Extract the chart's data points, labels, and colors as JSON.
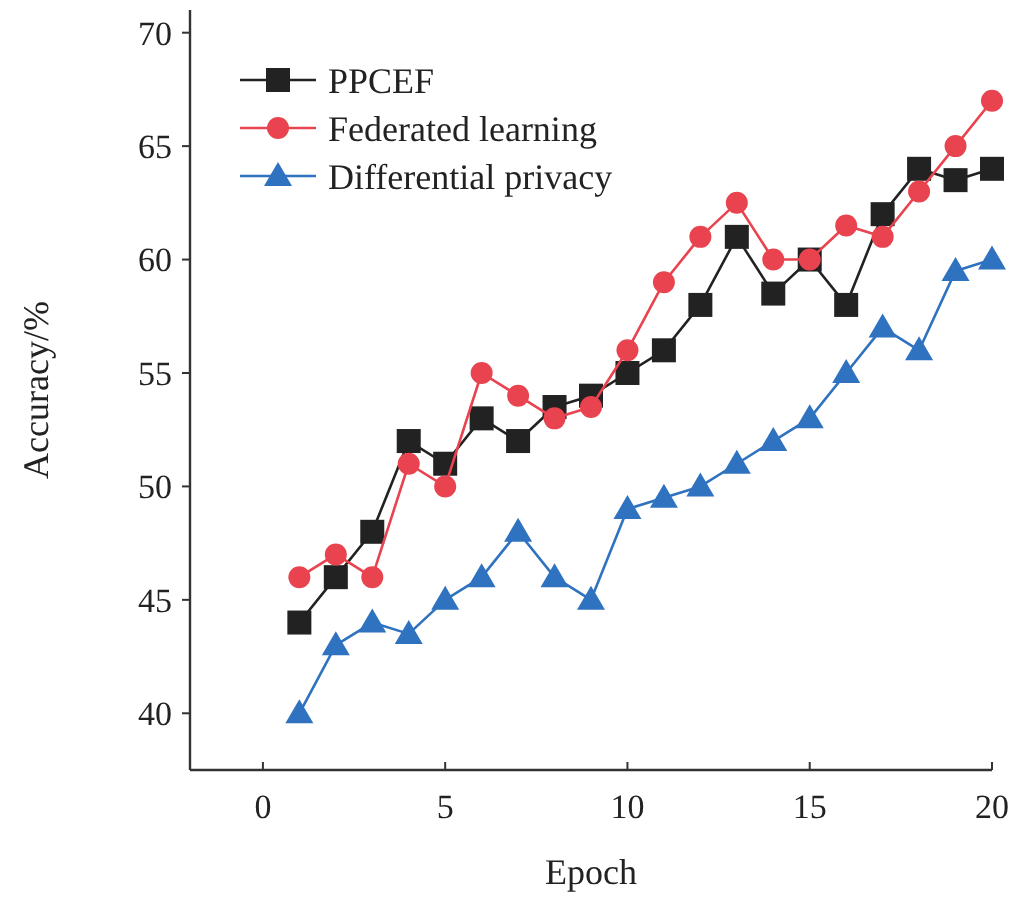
{
  "chart_data": {
    "type": "line",
    "xlabel": "Epoch",
    "ylabel": "Accuracy/%",
    "x": [
      1,
      2,
      3,
      4,
      5,
      6,
      7,
      8,
      9,
      10,
      11,
      12,
      13,
      14,
      15,
      16,
      17,
      18,
      19,
      20
    ],
    "xlim": [
      -2,
      20
    ],
    "xticks": [
      0,
      5,
      10,
      15,
      20
    ],
    "ylim": [
      37.5,
      71
    ],
    "yticks": [
      40,
      45,
      50,
      55,
      60,
      65,
      70
    ],
    "grid": false,
    "legend": "top left",
    "series": [
      {
        "name": "PPCEF",
        "color": "#222222",
        "marker": "square",
        "values": [
          44,
          46,
          48,
          52,
          51,
          53,
          52,
          53.5,
          54,
          55,
          56,
          58,
          61,
          58.5,
          60,
          58,
          62,
          64,
          63.5,
          64
        ]
      },
      {
        "name": "Federated learning",
        "color": "#e8434f",
        "marker": "circle",
        "values": [
          46,
          47,
          46,
          51,
          50,
          55,
          54,
          53,
          53.5,
          56,
          59,
          61,
          62.5,
          60,
          60,
          61.5,
          61,
          63,
          65,
          67
        ]
      },
      {
        "name": "Differential privacy",
        "color": "#2f72c0",
        "marker": "triangle",
        "values": [
          40,
          43,
          44,
          43.5,
          45,
          46,
          48,
          46,
          45,
          49,
          49.5,
          50,
          51,
          52,
          53,
          55,
          57,
          56,
          59.5,
          60
        ]
      }
    ]
  }
}
